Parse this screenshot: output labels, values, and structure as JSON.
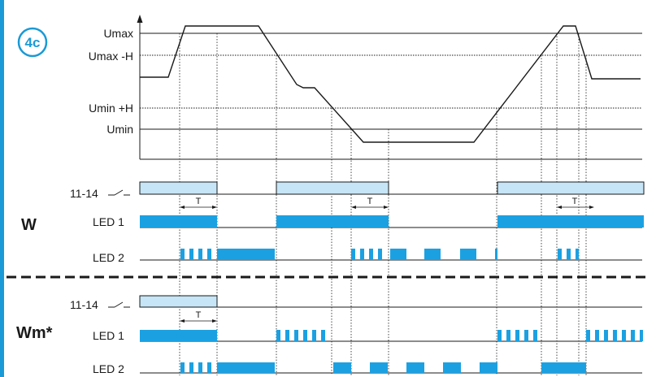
{
  "badge": "4c",
  "colors": {
    "accent": "#1a9ad6",
    "led_fill": "#1ba1e2",
    "relay_fill": "#c6e5f6",
    "line": "#1a1a1a"
  },
  "voltage_axis": {
    "levels": [
      "Umax",
      "Umax -H",
      "Umin +H",
      "Umin"
    ]
  },
  "sections": [
    {
      "mode": "W",
      "relay_label": "11-14",
      "led1_label": "LED 1",
      "led2_label": "LED 2",
      "delay_label": "T"
    },
    {
      "mode": "Wm*",
      "relay_label": "11-14",
      "led1_label": "LED 1",
      "led2_label": "LED 2",
      "delay_label": "T"
    }
  ]
}
